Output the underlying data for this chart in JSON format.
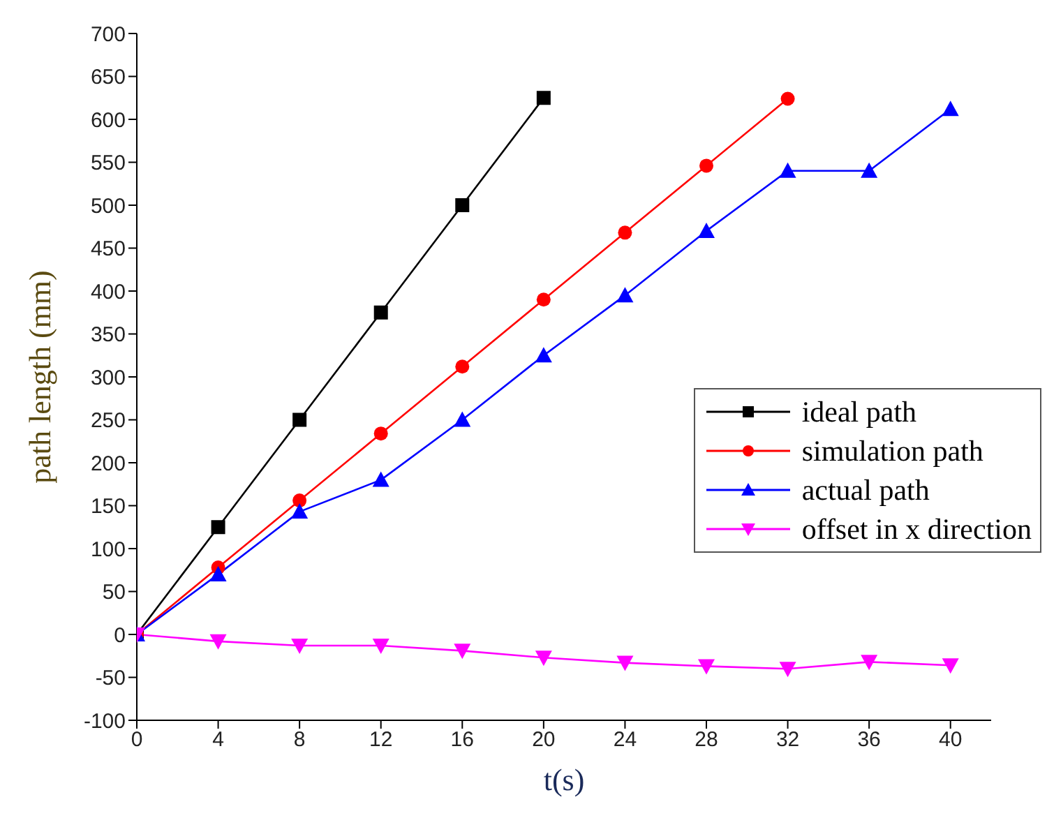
{
  "chart_data": {
    "type": "line",
    "xlabel": "t(s)",
    "ylabel": "path length (mm)",
    "xlim": [
      0,
      42
    ],
    "xticks": [
      0,
      4,
      8,
      12,
      16,
      20,
      24,
      28,
      32,
      36,
      40
    ],
    "ylim": [
      -100,
      700
    ],
    "yticks": [
      -100,
      -50,
      0,
      50,
      100,
      150,
      200,
      250,
      300,
      350,
      400,
      450,
      500,
      550,
      600,
      650,
      700
    ],
    "grid": false,
    "legend": "right",
    "series": [
      {
        "name": "ideal path",
        "color": "#000000",
        "marker": "square",
        "x": [
          0,
          4,
          8,
          12,
          16,
          20
        ],
        "values": [
          0,
          125,
          250,
          375,
          500,
          625
        ]
      },
      {
        "name": "simulation path",
        "color": "#ff0000",
        "marker": "circle",
        "x": [
          0,
          4,
          8,
          12,
          16,
          20,
          24,
          28,
          32
        ],
        "values": [
          0,
          78,
          156,
          234,
          312,
          390,
          468,
          546,
          624
        ]
      },
      {
        "name": "actual path",
        "color": "#0000ff",
        "marker": "triangle",
        "x": [
          0,
          4,
          8,
          12,
          16,
          20,
          24,
          28,
          32,
          36,
          40
        ],
        "values": [
          0,
          70,
          143,
          180,
          250,
          325,
          395,
          470,
          540,
          540,
          612
        ]
      },
      {
        "name": "offset in x direction",
        "color": "#ff00ff",
        "marker": "triangle-down",
        "x": [
          0,
          4,
          8,
          12,
          16,
          20,
          24,
          28,
          32,
          36,
          40
        ],
        "values": [
          0,
          -8,
          -13,
          -13,
          -19,
          -27,
          -33,
          -37,
          -40,
          -32,
          -36
        ]
      }
    ]
  }
}
